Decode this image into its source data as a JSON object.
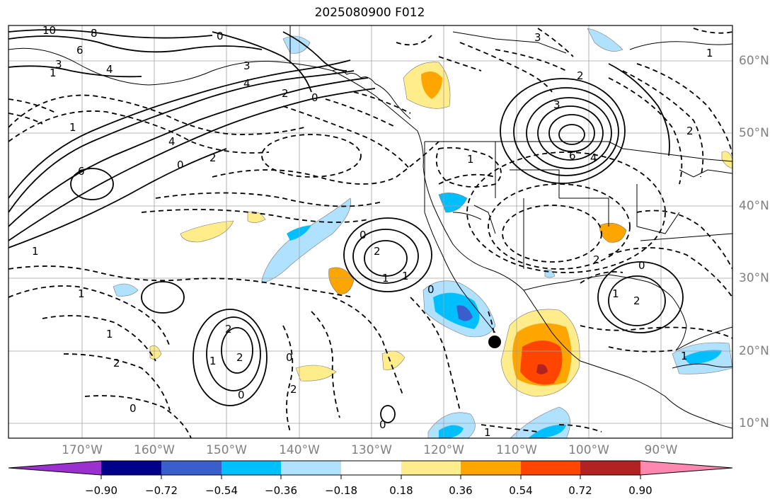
{
  "title": "2025080900 F012",
  "lat_labels": [
    "60°N",
    "50°N",
    "40°N",
    "30°N",
    "20°N",
    "10°N"
  ],
  "lon_labels": [
    "170°W",
    "160°W",
    "150°W",
    "140°W",
    "130°W",
    "120°W",
    "110°W",
    "100°W",
    "90°W"
  ],
  "colorbar": {
    "tick_labels": [
      "−0.90",
      "−0.72",
      "−0.54",
      "−0.36",
      "−0.18",
      "0.18",
      "0.36",
      "0.54",
      "0.72",
      "0.90"
    ],
    "colors": [
      "#9b30d0",
      "#00008b",
      "#3a5fcd",
      "#00bfff",
      "#b0e2ff",
      "#ffffff",
      "#ffec8b",
      "#ffa500",
      "#ff4500",
      "#b22222",
      "#ff88b0"
    ]
  },
  "contour_labels": [
    {
      "text": "10"
    },
    {
      "text": "8"
    },
    {
      "text": "6"
    },
    {
      "text": "4"
    },
    {
      "text": "3"
    },
    {
      "text": "1"
    },
    {
      "text": "6"
    },
    {
      "text": "4"
    },
    {
      "text": "2"
    },
    {
      "text": "1"
    },
    {
      "text": "0"
    },
    {
      "text": "3"
    },
    {
      "text": "4"
    },
    {
      "text": "1"
    },
    {
      "text": "2"
    },
    {
      "text": "0"
    },
    {
      "text": "6"
    },
    {
      "text": "4"
    },
    {
      "text": "3"
    },
    {
      "text": "2"
    },
    {
      "text": "1"
    },
    {
      "text": "2"
    },
    {
      "text": "2"
    },
    {
      "text": "1"
    },
    {
      "text": "1"
    },
    {
      "text": "2"
    },
    {
      "text": "0"
    },
    {
      "text": "2"
    },
    {
      "text": "2"
    },
    {
      "text": "1"
    },
    {
      "text": "0"
    },
    {
      "text": "2"
    },
    {
      "text": "2"
    },
    {
      "text": "0"
    },
    {
      "text": "1"
    },
    {
      "text": "1"
    },
    {
      "text": "1"
    },
    {
      "text": "2"
    },
    {
      "text": "0"
    },
    {
      "text": "1"
    },
    {
      "text": "0"
    },
    {
      "text": "0"
    },
    {
      "text": "1"
    },
    {
      "text": "0"
    },
    {
      "text": "1"
    },
    {
      "text": "3"
    },
    {
      "text": "0"
    }
  ],
  "marker": {
    "name": "black-dot",
    "color": "#000000"
  }
}
